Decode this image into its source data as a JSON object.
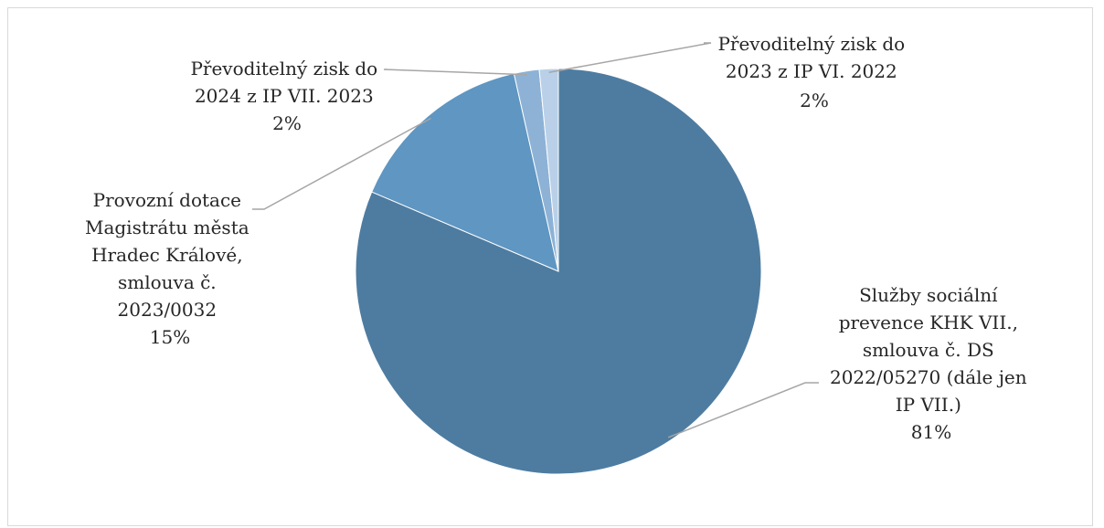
{
  "chart_data": {
    "type": "pie",
    "slices": [
      {
        "label_lines": [
          "Služby sociální",
          "prevence KHK VII.,",
          "smlouva č. DS",
          "2022/05270 (dále jen",
          "IP VII.)"
        ],
        "percent_label": "81%",
        "value": 81,
        "color": "#4e7ca1"
      },
      {
        "label_lines": [
          "Provozní dotace",
          "Magistrátu města",
          "Hradec Králové,",
          "smlouva č.",
          "2023/0032"
        ],
        "percent_label": "15%",
        "value": 15,
        "color": "#5f96c2"
      },
      {
        "label_lines": [
          "Převoditelný zisk do",
          "2024 z IP VII. 2023"
        ],
        "percent_label": "2%",
        "value": 2,
        "color": "#8db2d6"
      },
      {
        "label_lines": [
          "Převoditelný zisk do",
          "2023 z IP VI. 2022"
        ],
        "percent_label": "2%",
        "value": 1.5,
        "color": "#b9d0e8"
      }
    ],
    "start_angle_deg": 0,
    "direction": "clockwise",
    "legend": "none"
  }
}
